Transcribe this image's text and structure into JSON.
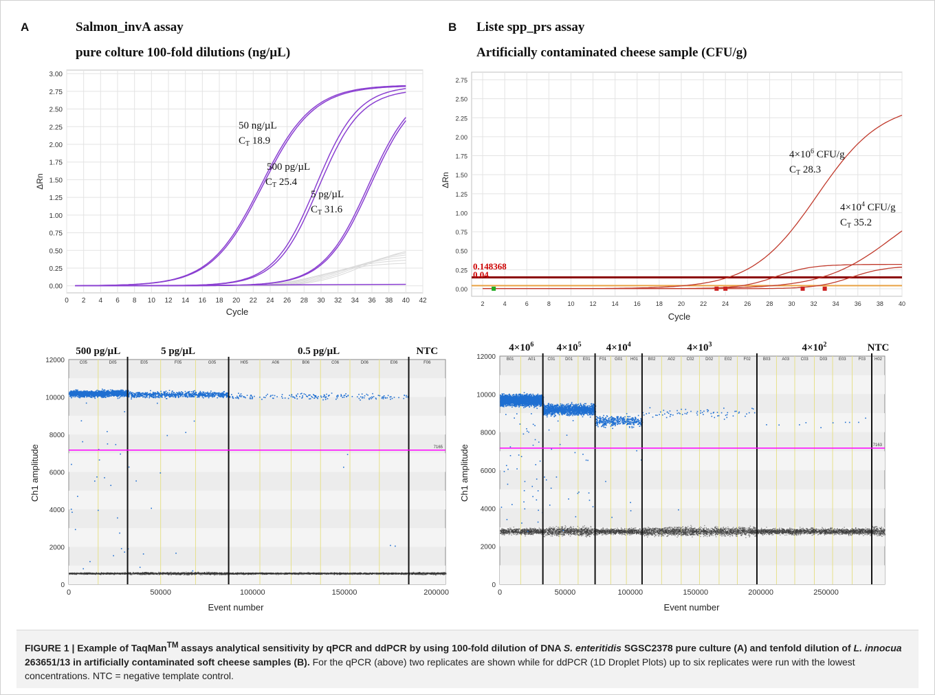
{
  "panel_A": {
    "letter": "A",
    "title": "Salmon_invA assay",
    "subtitle": "pure colture 100-fold dilutions (ng/µL)"
  },
  "panel_B": {
    "letter": "B",
    "title": "Liste spp_prs assay",
    "subtitle": "Artificially contaminated cheese sample (CFU/g)"
  },
  "caption": {
    "fig_label": "FIGURE 1 | ",
    "bold_1": "Example of TaqMan",
    "bold_sup": "TM",
    "bold_2": " assays analytical sensitivity by qPCR and ddPCR by using 100-fold dilution of DNA ",
    "bold_it_1": "S. enteritidis",
    "bold_3": " SGSC2378 pure culture (A) and tenfold dilution of ",
    "bold_it_2": "L. innocua",
    "bold_4": " 263651/13 in artificially contaminated soft cheese samples (B).",
    "normal": " For the qPCR (above) two replicates are shown while for ddPCR (1D Droplet Plots) up to six replicates were run with the lowest concentrations. NTC = negative template control."
  },
  "chart_data": [
    {
      "id": "A_qpcr",
      "type": "line",
      "xlabel": "Cycle",
      "ylabel": "ΔRn",
      "xlim": [
        0,
        42
      ],
      "ylim": [
        -0.1,
        3.05
      ],
      "xticks": [
        0,
        2,
        4,
        6,
        8,
        10,
        12,
        14,
        16,
        18,
        20,
        22,
        24,
        26,
        28,
        30,
        32,
        34,
        36,
        38,
        40,
        42
      ],
      "yticks": [
        0.0,
        0.25,
        0.5,
        0.75,
        1.0,
        1.25,
        1.5,
        1.75,
        2.0,
        2.25,
        2.5,
        2.75,
        3.0
      ],
      "grid": true,
      "threshold": 0.02,
      "colors": {
        "amplification": "#8a3fd1",
        "background": "#d9d9d9"
      },
      "series": [
        {
          "ct": 18.9,
          "plateau": 2.84,
          "slope": 0.33
        },
        {
          "ct": 19.1,
          "plateau": 2.83,
          "slope": 0.33
        },
        {
          "ct": 25.4,
          "plateau": 2.83,
          "slope": 0.4
        },
        {
          "ct": 25.7,
          "plateau": 2.78,
          "slope": 0.4
        },
        {
          "ct": 31.6,
          "plateau": 2.85,
          "slope": 0.37
        },
        {
          "ct": 31.8,
          "plateau": 2.83,
          "slope": 0.37
        }
      ],
      "annotations": [
        {
          "conc": "50 ng/µL",
          "ct_label": "C",
          "ct_sub": "T",
          "ct_value": "18.9"
        },
        {
          "conc": "500 pg/µL",
          "ct_label": "C",
          "ct_sub": "T",
          "ct_value": "25.4"
        },
        {
          "conc": "5 pg/µL",
          "ct_label": "C",
          "ct_sub": "T",
          "ct_value": "31.6"
        }
      ]
    },
    {
      "id": "B_qpcr",
      "type": "line",
      "xlabel": "Cycle",
      "ylabel": "ΔRn",
      "xlim": [
        1,
        40
      ],
      "ylim": [
        -0.1,
        2.85
      ],
      "xticks": [
        2,
        4,
        6,
        8,
        10,
        12,
        14,
        16,
        18,
        20,
        22,
        24,
        26,
        28,
        30,
        32,
        34,
        36,
        38,
        40
      ],
      "xtick_labels": [
        "2",
        "4",
        "6",
        "8",
        "10",
        "12",
        "14",
        "16",
        "18",
        "20",
        "22",
        "24",
        "26",
        "28",
        "30",
        "32",
        "34",
        "36",
        "38",
        "40"
      ],
      "yticks": [
        0.0,
        0.25,
        0.5,
        0.75,
        1.0,
        1.25,
        1.5,
        1.75,
        2.0,
        2.25,
        2.5,
        2.75
      ],
      "grid": true,
      "thresholds": [
        {
          "label": "0.148368",
          "value": 0.148368,
          "color": "#8b0000"
        },
        {
          "label": "0.04",
          "value": 0.04,
          "color": "#e8a040"
        }
      ],
      "colors": {
        "amplification": "#c0392b"
      },
      "series": [
        {
          "ct": 28.3,
          "plateau": 2.45,
          "slope": 0.34
        },
        {
          "ct": 35.2,
          "plateau": 1.35,
          "slope": 0.32
        },
        {
          "ct": 28.6,
          "plateau": 0.32,
          "slope": 0.3,
          "flat": true
        },
        {
          "ct": 35.4,
          "plateau": 0.3,
          "slope": 0.3,
          "flat": true
        }
      ],
      "annotations": [
        {
          "conc": "4×10",
          "exp": "6",
          "unit": " CFU/g",
          "ct_label": "C",
          "ct_sub": "T",
          "ct_value": "28.3"
        },
        {
          "conc": "4×10",
          "exp": "4",
          "unit": " CFU/g",
          "ct_label": "C",
          "ct_sub": "T",
          "ct_value": "35.2"
        }
      ]
    },
    {
      "id": "A_ddpcr",
      "type": "scatter",
      "xlabel": "Event number",
      "ylabel": "Ch1 amplitude",
      "xlim": [
        0,
        205000
      ],
      "ylim": [
        0,
        12000
      ],
      "xticks": [
        0,
        50000,
        100000,
        150000,
        200000
      ],
      "xtick_labels": [
        "0",
        "50000",
        "100000",
        "150000",
        "200000"
      ],
      "yticks": [
        0,
        2000,
        4000,
        6000,
        8000,
        10000,
        12000
      ],
      "ytick_labels": [
        "0",
        "2000",
        "4000",
        "6000",
        "8000",
        "10000",
        "12000"
      ],
      "threshold": {
        "value": 7165,
        "label": "7165",
        "color": "#ff00ff"
      },
      "groups": [
        {
          "label": "500 pg/µL",
          "from": 0,
          "to": 32000
        },
        {
          "label": "5 pg/µL",
          "from": 32000,
          "to": 87000
        },
        {
          "label": "0.5 pg/µL",
          "from": 87000,
          "to": 185000
        },
        {
          "label": "NTC",
          "from": 185000,
          "to": 205000
        }
      ],
      "wells": [
        {
          "id": "C05",
          "from": 0,
          "to": 16000
        },
        {
          "id": "D05",
          "from": 16000,
          "to": 32000
        },
        {
          "id": "E05",
          "from": 32000,
          "to": 50000
        },
        {
          "id": "F05",
          "from": 50000,
          "to": 69000
        },
        {
          "id": "G05",
          "from": 69000,
          "to": 87000
        },
        {
          "id": "H05",
          "from": 87000,
          "to": 104000
        },
        {
          "id": "A06",
          "from": 104000,
          "to": 121000
        },
        {
          "id": "B06",
          "from": 121000,
          "to": 137000
        },
        {
          "id": "C06",
          "from": 137000,
          "to": 153000
        },
        {
          "id": "D06",
          "from": 153000,
          "to": 169000
        },
        {
          "id": "E06",
          "from": 169000,
          "to": 185000
        },
        {
          "id": "F06",
          "from": 185000,
          "to": 205000
        }
      ],
      "positive_mean": [
        10200,
        10150,
        10050,
        10100
      ],
      "positive_count": [
        1400,
        700,
        180,
        0
      ],
      "negative_mean": 600,
      "colors": {
        "positive": "#1f6fd1",
        "negative": "#333333",
        "divider": "#111111",
        "well_line": "#e6e08a",
        "band": "#e8e8e8"
      }
    },
    {
      "id": "B_ddpcr",
      "type": "scatter",
      "xlabel": "Event number",
      "ylabel": "Ch1 amplitude",
      "xlim": [
        0,
        295000
      ],
      "ylim": [
        0,
        12000
      ],
      "xticks": [
        0,
        50000,
        100000,
        150000,
        200000,
        250000
      ],
      "xtick_labels": [
        "0",
        "50000",
        "100000",
        "150000",
        "200000",
        "250000"
      ],
      "yticks": [
        0,
        2000,
        4000,
        6000,
        8000,
        10000,
        12000
      ],
      "ytick_labels": [
        "0",
        "2000",
        "4000",
        "6000",
        "8000",
        "10000",
        "12000"
      ],
      "threshold": {
        "value": 7163,
        "label": "7163",
        "color": "#ff00ff"
      },
      "groups": [
        {
          "label": "4×10",
          "exp": "6",
          "from": 0,
          "to": 33000
        },
        {
          "label": "4×10",
          "exp": "5",
          "from": 33000,
          "to": 73000
        },
        {
          "label": "4×10",
          "exp": "4",
          "from": 73000,
          "to": 109000
        },
        {
          "label": "4×10",
          "exp": "3",
          "from": 109000,
          "to": 197000
        },
        {
          "label": "4×10",
          "exp": "2",
          "from": 197000,
          "to": 285000
        },
        {
          "label": "NTC",
          "from": 285000,
          "to": 295000
        }
      ],
      "wells": [
        {
          "id": "B01",
          "from": 0,
          "to": 16000
        },
        {
          "id": "A01",
          "from": 16000,
          "to": 33000
        },
        {
          "id": "C01",
          "from": 33000,
          "to": 46000
        },
        {
          "id": "D01",
          "from": 46000,
          "to": 60000
        },
        {
          "id": "E01",
          "from": 60000,
          "to": 73000
        },
        {
          "id": "F01",
          "from": 73000,
          "to": 85000
        },
        {
          "id": "G01",
          "from": 85000,
          "to": 97000
        },
        {
          "id": "H01",
          "from": 97000,
          "to": 109000
        },
        {
          "id": "B02",
          "from": 109000,
          "to": 124000
        },
        {
          "id": "A02",
          "from": 124000,
          "to": 139000
        },
        {
          "id": "C02",
          "from": 139000,
          "to": 153000
        },
        {
          "id": "D02",
          "from": 153000,
          "to": 168000
        },
        {
          "id": "E02",
          "from": 168000,
          "to": 182000
        },
        {
          "id": "F02",
          "from": 182000,
          "to": 197000
        },
        {
          "id": "B03",
          "from": 197000,
          "to": 212000
        },
        {
          "id": "A03",
          "from": 212000,
          "to": 226000
        },
        {
          "id": "C03",
          "from": 226000,
          "to": 241000
        },
        {
          "id": "D03",
          "from": 241000,
          "to": 255000
        },
        {
          "id": "E03",
          "from": 255000,
          "to": 270000
        },
        {
          "id": "F03",
          "from": 270000,
          "to": 285000
        },
        {
          "id": "H02",
          "from": 285000,
          "to": 295000
        }
      ],
      "positive_mean": [
        9700,
        9200,
        8600,
        9000,
        8500,
        0
      ],
      "positive_count": [
        2200,
        1300,
        330,
        70,
        10,
        0
      ],
      "negative_mean": 2800,
      "colors": {
        "positive": "#1f6fd1",
        "negative": "#3a3a3a",
        "divider": "#111111",
        "well_line": "#e6e08a",
        "band": "#e8e8e8"
      }
    }
  ]
}
